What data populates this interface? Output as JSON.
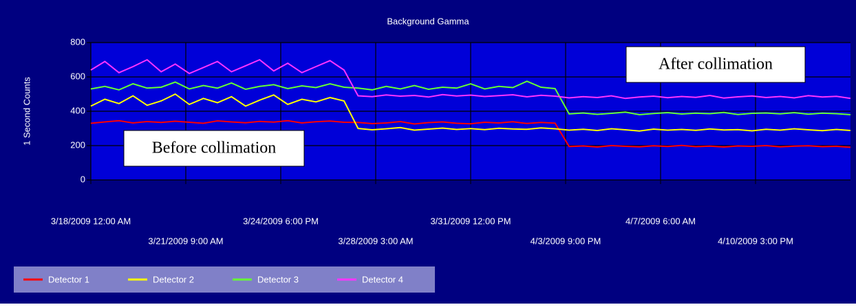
{
  "chart_data": {
    "type": "line",
    "title": "Background Gamma",
    "y_label": "1 Second Counts",
    "x": [
      "2009-03-18T00:00",
      "2009-03-18T12:00",
      "2009-03-19T00:00",
      "2009-03-19T12:00",
      "2009-03-20T00:00",
      "2009-03-20T12:00",
      "2009-03-21T00:00",
      "2009-03-21T12:00",
      "2009-03-22T00:00",
      "2009-03-22T12:00",
      "2009-03-23T00:00",
      "2009-03-23T12:00",
      "2009-03-24T00:00",
      "2009-03-24T12:00",
      "2009-03-25T00:00",
      "2009-03-25T12:00",
      "2009-03-26T00:00",
      "2009-03-26T12:00",
      "2009-03-27T00:00",
      "2009-03-27T12:00",
      "2009-03-28T00:00",
      "2009-03-28T12:00",
      "2009-03-29T00:00",
      "2009-03-29T12:00",
      "2009-03-30T00:00",
      "2009-03-30T12:00",
      "2009-03-31T00:00",
      "2009-03-31T12:00",
      "2009-04-01T00:00",
      "2009-04-01T12:00",
      "2009-04-02T00:00",
      "2009-04-02T12:00",
      "2009-04-03T00:00",
      "2009-04-03T12:00",
      "2009-04-04T00:00",
      "2009-04-04T12:00",
      "2009-04-05T00:00",
      "2009-04-05T12:00",
      "2009-04-06T00:00",
      "2009-04-06T12:00",
      "2009-04-07T00:00",
      "2009-04-07T12:00",
      "2009-04-08T00:00",
      "2009-04-08T12:00",
      "2009-04-09T00:00",
      "2009-04-09T12:00",
      "2009-04-10T00:00",
      "2009-04-10T12:00",
      "2009-04-11T00:00",
      "2009-04-11T12:00",
      "2009-04-12T00:00",
      "2009-04-12T12:00",
      "2009-04-13T00:00",
      "2009-04-13T12:00",
      "2009-04-14T00:00"
    ],
    "series": [
      {
        "name": "Detector 1",
        "color": "#ff0000",
        "values": [
          330,
          338,
          345,
          332,
          340,
          335,
          342,
          336,
          330,
          344,
          338,
          333,
          341,
          337,
          345,
          332,
          339,
          343,
          336,
          335,
          328,
          332,
          340,
          326,
          334,
          338,
          330,
          327,
          336,
          332,
          339,
          329,
          335,
          331,
          195,
          198,
          192,
          200,
          196,
          193,
          199,
          195,
          201,
          194,
          197,
          192,
          198,
          196,
          200,
          193,
          197,
          199,
          194,
          196,
          190
        ]
      },
      {
        "name": "Detector 2",
        "color": "#ffff00",
        "values": [
          430,
          470,
          445,
          490,
          435,
          460,
          500,
          440,
          475,
          450,
          485,
          430,
          465,
          495,
          440,
          470,
          455,
          480,
          460,
          300,
          292,
          298,
          305,
          290,
          296,
          302,
          294,
          299,
          293,
          301,
          297,
          295,
          303,
          298,
          290,
          295,
          288,
          298,
          292,
          285,
          296,
          290,
          294,
          289,
          297,
          291,
          293,
          286,
          295,
          290,
          298,
          292,
          287,
          294,
          288
        ]
      },
      {
        "name": "Detector 3",
        "color": "#66ff33",
        "values": [
          530,
          545,
          525,
          560,
          535,
          540,
          570,
          530,
          550,
          535,
          565,
          528,
          545,
          555,
          532,
          548,
          538,
          560,
          540,
          535,
          525,
          545,
          530,
          550,
          528,
          540,
          535,
          560,
          530,
          545,
          538,
          575,
          540,
          532,
          385,
          390,
          382,
          388,
          395,
          380,
          387,
          392,
          384,
          389,
          386,
          393,
          381,
          388,
          390,
          385,
          392,
          383,
          389,
          386,
          380
        ]
      },
      {
        "name": "Detector 4",
        "color": "#ff33ff",
        "values": [
          640,
          690,
          625,
          660,
          700,
          630,
          675,
          620,
          655,
          690,
          630,
          665,
          700,
          635,
          680,
          625,
          660,
          695,
          640,
          490,
          485,
          495,
          488,
          492,
          483,
          497,
          489,
          494,
          486,
          491,
          496,
          484,
          493,
          488,
          478,
          485,
          480,
          490,
          475,
          483,
          488,
          479,
          486,
          481,
          492,
          477,
          484,
          489,
          480,
          486,
          478,
          491,
          483,
          487,
          475
        ]
      }
    ],
    "xlim": [
      "2009-03-18T00:00",
      "2009-04-14T00:00"
    ],
    "xticks": [
      {
        "value": "2009-03-18T00:00",
        "label": "3/18/2009 12:00 AM"
      },
      {
        "value": "2009-03-21T09:00",
        "label": "3/21/2009 9:00 AM"
      },
      {
        "value": "2009-03-24T18:00",
        "label": "3/24/2009 6:00 PM"
      },
      {
        "value": "2009-03-28T03:00",
        "label": "3/28/2009 3:00 AM"
      },
      {
        "value": "2009-03-31T12:00",
        "label": "3/31/2009 12:00 PM"
      },
      {
        "value": "2009-04-03T21:00",
        "label": "4/3/2009 9:00 PM"
      },
      {
        "value": "2009-04-07T06:00",
        "label": "4/7/2009 6:00 AM"
      },
      {
        "value": "2009-04-10T15:00",
        "label": "4/10/2009 3:00 PM"
      }
    ],
    "ylim": [
      0,
      800
    ],
    "yticks": [
      0,
      200,
      400,
      600,
      800
    ],
    "grid": true,
    "legend": "bottom-left",
    "annotations": [
      "Before collimation",
      "After collimation"
    ]
  }
}
